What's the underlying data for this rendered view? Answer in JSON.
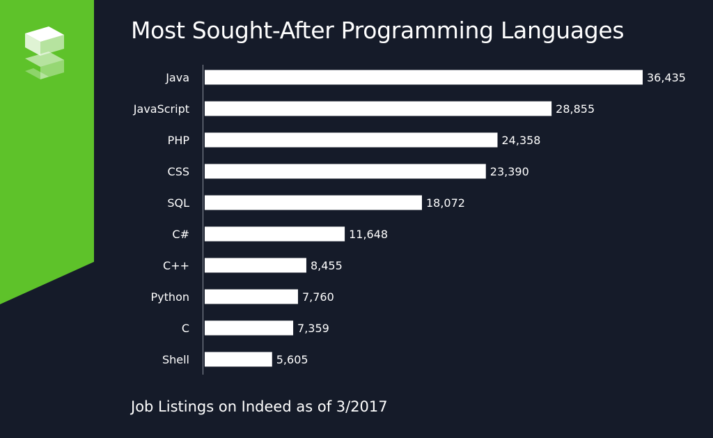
{
  "page": {
    "title": "Most Sought-After Programming Languages",
    "subtitle": "Job Listings on Indeed as of 3/2017"
  },
  "colors": {
    "background": "#151b29",
    "accent": "#5ec22a",
    "bar": "#ffffff",
    "text": "#ffffff"
  },
  "chart_data": {
    "type": "bar",
    "orientation": "horizontal",
    "title": "Most Sought-After Programming Languages",
    "subtitle": "Job Listings on Indeed as of 3/2017",
    "xlabel": "",
    "ylabel": "",
    "xlim": [
      0,
      36435
    ],
    "grid": false,
    "categories": [
      "Java",
      "JavaScript",
      "PHP",
      "CSS",
      "SQL",
      "C#",
      "C++",
      "Python",
      "C",
      "Shell"
    ],
    "values": [
      36435,
      28855,
      24358,
      23390,
      18072,
      11648,
      8455,
      7760,
      7359,
      5605
    ],
    "value_labels": [
      "36,435",
      "28,855",
      "24,358",
      "23,390",
      "18,072",
      "11,648",
      "8,455",
      "7,760",
      "7,359",
      "5,605"
    ]
  }
}
